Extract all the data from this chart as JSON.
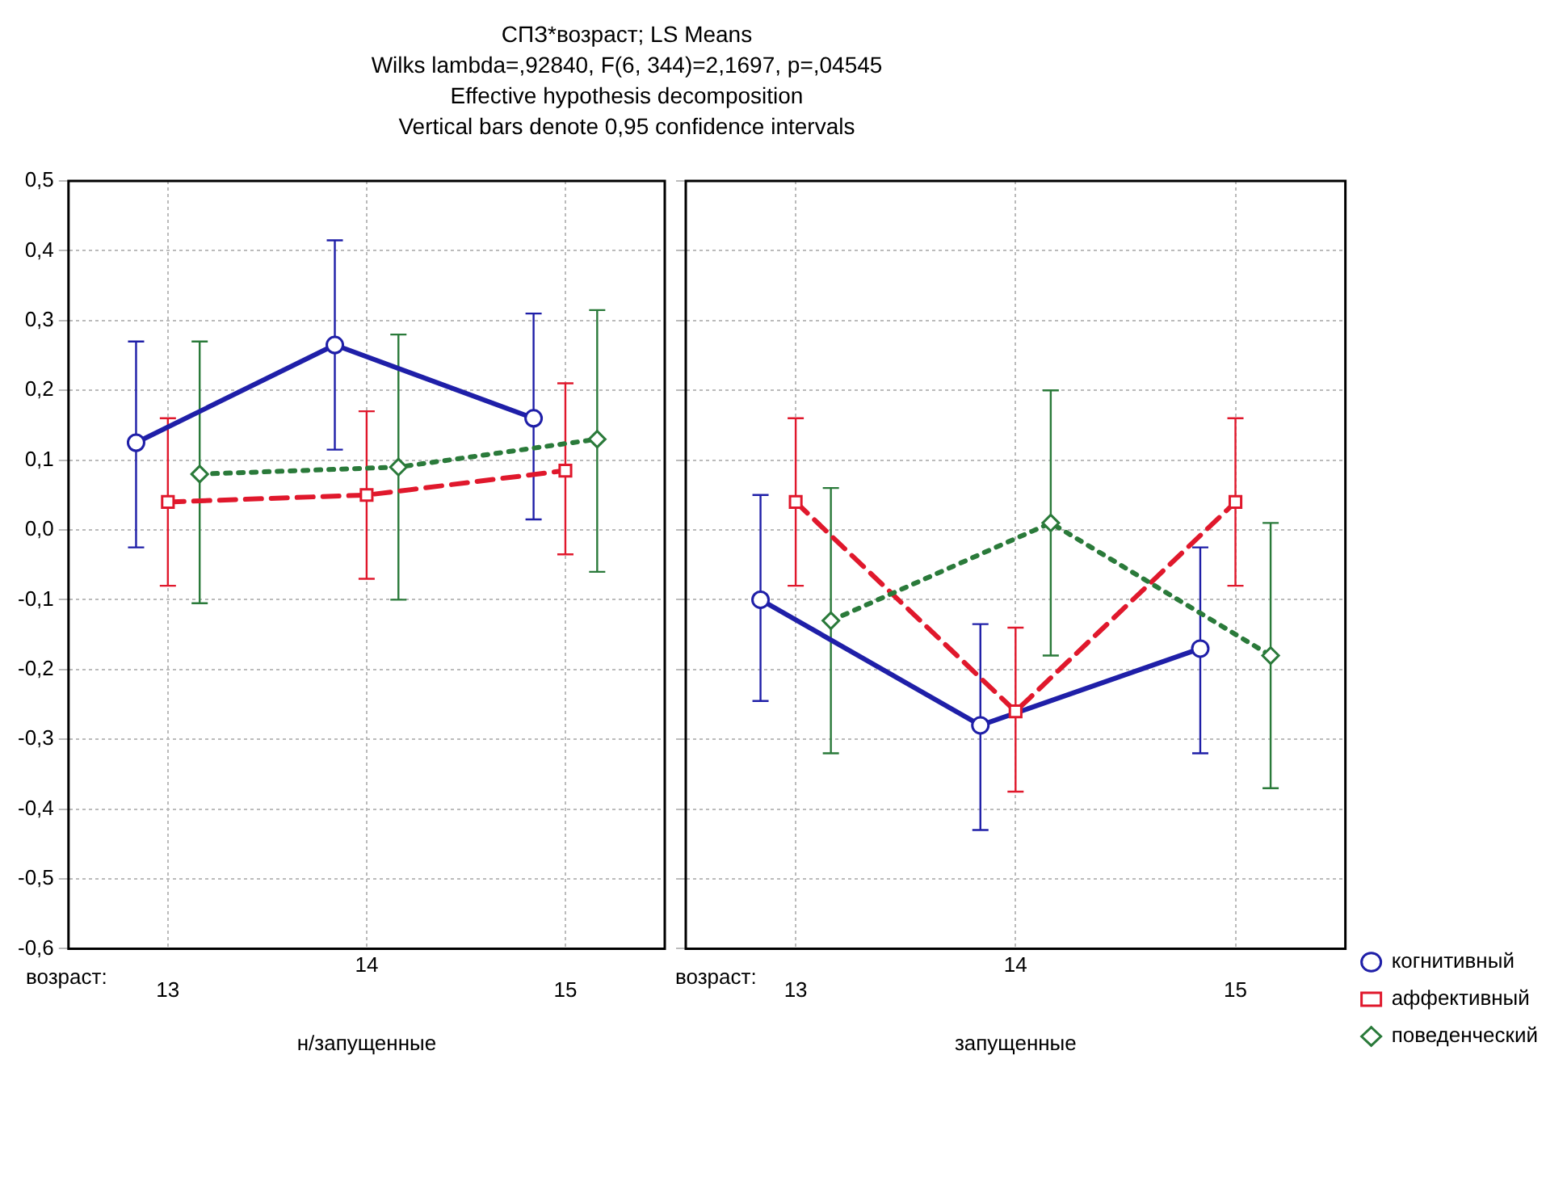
{
  "chart_data": [
    {
      "type": "line",
      "title": "СПЗ*возраст; LS Means",
      "subtitle": "Wilks lambda=,92840, F(6, 344)=2,1697, p=,04545",
      "annotations": [
        "Effective hypothesis decomposition",
        "Vertical bars denote 0,95 confidence intervals",
        "возраст:"
      ],
      "xlabel": "н/запущенные",
      "categories": [
        "13",
        "14",
        "15"
      ],
      "ylim": [
        -0.6,
        0.5
      ],
      "yticks": [
        {
          "value": -0.6,
          "label": "-0,6"
        },
        {
          "value": -0.5,
          "label": "-0,5"
        },
        {
          "value": -0.4,
          "label": "-0,4"
        },
        {
          "value": -0.3,
          "label": "-0,3"
        },
        {
          "value": -0.2,
          "label": "-0,2"
        },
        {
          "value": -0.1,
          "label": "-0,1"
        },
        {
          "value": 0,
          "label": "0,0"
        },
        {
          "value": 0.1,
          "label": "0,1"
        },
        {
          "value": 0.2,
          "label": "0,2"
        },
        {
          "value": 0.3,
          "label": "0,3"
        },
        {
          "value": 0.4,
          "label": "0,4"
        },
        {
          "value": 0.5,
          "label": "0,5"
        }
      ],
      "grid": true,
      "legend": false,
      "series": [
        {
          "color": "#1f1fa8",
          "marker": "circle",
          "line_style": "solid",
          "values": [
            0.125,
            0.265,
            0.16
          ],
          "errors": [
            [
              -0.025,
              0.27
            ],
            [
              0.115,
              0.415
            ],
            [
              0.015,
              0.31
            ]
          ]
        },
        {
          "color": "#e0182c",
          "marker": "square",
          "line_style": "dashed",
          "values": [
            0.04,
            0.05,
            0.085
          ],
          "errors": [
            [
              -0.08,
              0.16
            ],
            [
              -0.07,
              0.17
            ],
            [
              -0.035,
              0.21
            ]
          ]
        },
        {
          "color": "#2a7a3a",
          "marker": "diamond",
          "line_style": "dotted",
          "values": [
            0.08,
            0.09,
            0.13
          ],
          "errors": [
            [
              -0.105,
              0.27
            ],
            [
              -0.1,
              0.28
            ],
            [
              -0.06,
              0.315
            ]
          ]
        }
      ]
    },
    {
      "type": "line",
      "annotations": [
        "возраст:"
      ],
      "xlabel": "запущенные",
      "categories": [
        "13",
        "14",
        "15"
      ],
      "ylim": [
        -0.6,
        0.5
      ],
      "yticks": [
        -0.6,
        -0.5,
        -0.4,
        -0.3,
        -0.2,
        -0.1,
        0,
        0.1,
        0.2,
        0.3,
        0.4,
        0.5
      ],
      "tick_labels": "x",
      "grid": true,
      "legend": "bottom right",
      "series": [
        {
          "name": "когнитивный",
          "color": "#1f1fa8",
          "marker": "circle",
          "line_style": "solid",
          "values": [
            -0.1,
            -0.28,
            -0.17
          ],
          "errors": [
            [
              -0.245,
              0.05
            ],
            [
              -0.43,
              -0.135
            ],
            [
              -0.32,
              -0.025
            ]
          ]
        },
        {
          "name": "аффективный",
          "color": "#e0182c",
          "marker": "square",
          "line_style": "dashed",
          "values": [
            0.04,
            -0.26,
            0.04
          ],
          "errors": [
            [
              -0.08,
              0.16
            ],
            [
              -0.375,
              -0.14
            ],
            [
              -0.08,
              0.16
            ]
          ]
        },
        {
          "name": "поведенческий",
          "color": "#2a7a3a",
          "marker": "diamond",
          "line_style": "dotted",
          "values": [
            -0.13,
            0.01,
            -0.18
          ],
          "errors": [
            [
              -0.32,
              0.06
            ],
            [
              -0.18,
              0.2
            ],
            [
              -0.37,
              0.01
            ]
          ]
        }
      ]
    }
  ]
}
